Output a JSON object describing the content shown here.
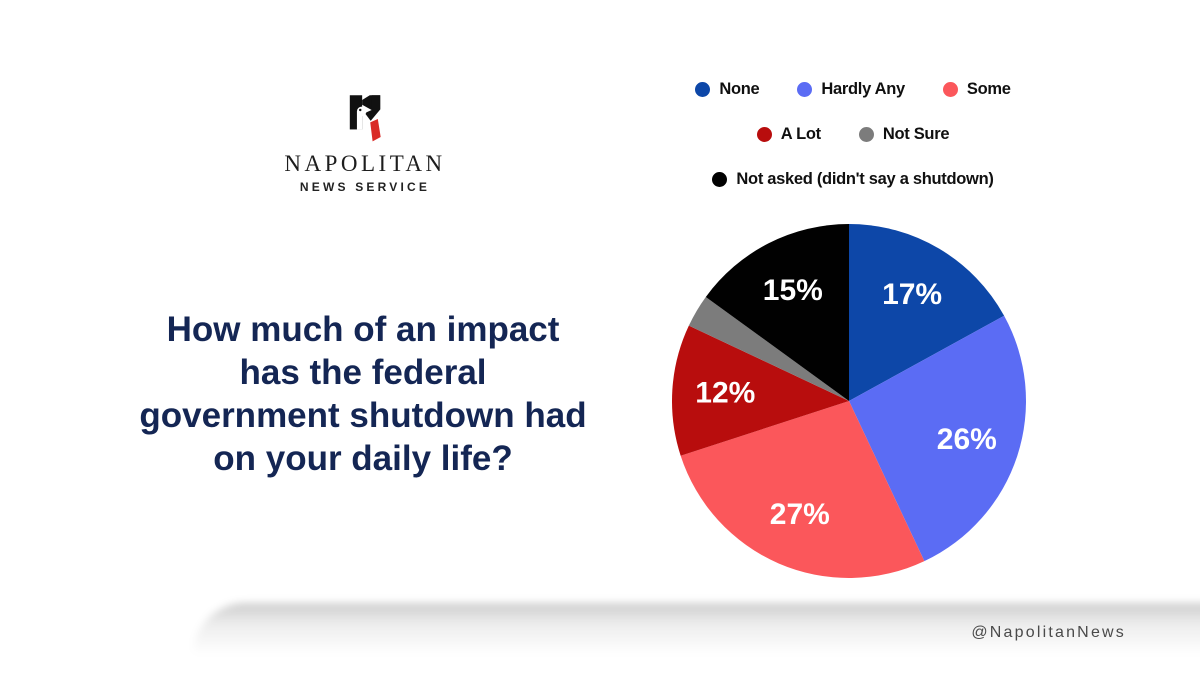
{
  "brand": {
    "name_line1": "NAPOLITAN",
    "name_line2": "NEWS SERVICE",
    "logo_icon": "napolitan-eagle-n-logo",
    "logo_black": "#111111",
    "logo_red": "#d92b27"
  },
  "question": {
    "full_text": "How much of an impact has the federal government shutdown had on your daily life?",
    "lines": [
      "How much of an impact",
      "has the federal",
      "government shutdown had",
      "on your daily life?"
    ],
    "color": "#142654"
  },
  "footer": {
    "handle": "@NapolitanNews"
  },
  "chart_data": {
    "type": "pie",
    "title": "How much of an impact has the federal government shutdown had on your daily life?",
    "start_angle_deg": 0,
    "direction": "clockwise",
    "label_color": "#ffffff",
    "slices": [
      {
        "label": "None",
        "value": 17,
        "display": "17%",
        "color": "#0d47a8",
        "show_label": true
      },
      {
        "label": "Hardly Any",
        "value": 26,
        "display": "26%",
        "color": "#5b6cf4",
        "show_label": true
      },
      {
        "label": "Some",
        "value": 27,
        "display": "27%",
        "color": "#fb575b",
        "show_label": true
      },
      {
        "label": "A Lot",
        "value": 12,
        "display": "12%",
        "color": "#b80d0d",
        "show_label": true
      },
      {
        "label": "Not Sure",
        "value": 3,
        "display": "",
        "color": "#7c7c7c",
        "show_label": false
      },
      {
        "label": "Not asked (didn't say a shutdown)",
        "value": 15,
        "display": "15%",
        "color": "#010101",
        "show_label": true
      }
    ],
    "legend_rows": [
      [
        0,
        1,
        2
      ],
      [
        3,
        4
      ],
      [
        5
      ]
    ],
    "legend_position": "top-right"
  }
}
